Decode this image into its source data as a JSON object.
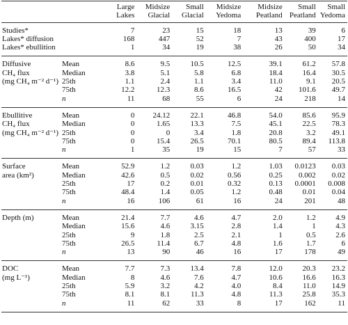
{
  "table": {
    "columns": [
      [
        "Large",
        "Lakes"
      ],
      [
        "Midsize",
        "Glacial"
      ],
      [
        "Small",
        "Glacial"
      ],
      [
        "Midsize",
        "Yedoma"
      ],
      [
        "Midsize",
        "Peatland"
      ],
      [
        "Small",
        "Peatland"
      ],
      [
        "Small",
        "Yedoma"
      ]
    ],
    "counts": [
      {
        "label": "Studies*",
        "values": [
          "7",
          "23",
          "15",
          "18",
          "13",
          "39",
          "6"
        ]
      },
      {
        "label": "Lakes* diffusion",
        "values": [
          "168",
          "447",
          "52",
          "7",
          "43",
          "400",
          "17"
        ]
      },
      {
        "label": "Lakes* ebullition",
        "values": [
          "1",
          "34",
          "19",
          "38",
          "26",
          "50",
          "34"
        ]
      }
    ],
    "sections": [
      {
        "label": [
          "Diffusive",
          "CH₄ flux",
          "(mg CH₄ m⁻² d⁻¹)"
        ],
        "rows": [
          {
            "stat": "Mean",
            "values": [
              "8.6",
              "9.5",
              "10.5",
              "12.5",
              "39.1",
              "61.2",
              "57.8"
            ]
          },
          {
            "stat": "Median",
            "values": [
              "3.8",
              "5.1",
              "5.8",
              "6.8",
              "18.4",
              "16.4",
              "30.5"
            ]
          },
          {
            "stat": "25th",
            "values": [
              "1.1",
              "2.4",
              "1.1",
              "3.4",
              "11.0",
              "9.1",
              "20.5"
            ]
          },
          {
            "stat": "75th",
            "values": [
              "12.2",
              "12.3",
              "8.6",
              "16.5",
              "42",
              "101.6",
              "49.7"
            ]
          },
          {
            "stat": "n",
            "values": [
              "11",
              "68",
              "55",
              "6",
              "24",
              "218",
              "14"
            ]
          }
        ]
      },
      {
        "label": [
          "Ebullitive",
          "CH₄ flux",
          "(mg CH₄ m⁻² d⁻¹)"
        ],
        "rows": [
          {
            "stat": "Mean",
            "values": [
              "0",
              "24.12",
              "22.1",
              "46.8",
              "54.0",
              "85.6",
              "95.9"
            ]
          },
          {
            "stat": "Median",
            "values": [
              "0",
              "1.65",
              "13.3",
              "7.5",
              "45.1",
              "22.5",
              "78.3"
            ]
          },
          {
            "stat": "25th",
            "values": [
              "0",
              "0",
              "3.4",
              "1.8",
              "20.8",
              "3.2",
              "49.1"
            ]
          },
          {
            "stat": "75th",
            "values": [
              "0",
              "15.4",
              "26.5",
              "70.1",
              "80.5",
              "89.4",
              "113.8"
            ]
          },
          {
            "stat": "n",
            "values": [
              "1",
              "35",
              "19",
              "15",
              "7",
              "57",
              "33"
            ]
          }
        ]
      },
      {
        "label": [
          "Surface",
          "area (km²)"
        ],
        "rows": [
          {
            "stat": "Mean",
            "values": [
              "52.9",
              "1.2",
              "0.03",
              "1.2",
              "1.03",
              "0.0123",
              "0.03"
            ]
          },
          {
            "stat": "Median",
            "values": [
              "42.6",
              "0.5",
              "0.02",
              "0.56",
              "0.25",
              "0.002",
              "0.02"
            ]
          },
          {
            "stat": "25th",
            "values": [
              "17",
              "0.2",
              "0.01",
              "0.32",
              "0.13",
              "0.0001",
              "0.008"
            ]
          },
          {
            "stat": "75th",
            "values": [
              "48.4",
              "1.4",
              "0.05",
              "1.2",
              "0.48",
              "0.01",
              "0.04"
            ]
          },
          {
            "stat": "n",
            "values": [
              "16",
              "106",
              "61",
              "16",
              "24",
              "201",
              "48"
            ]
          }
        ]
      },
      {
        "label": [
          "Depth (m)"
        ],
        "rows": [
          {
            "stat": "Mean",
            "values": [
              "21.4",
              "7.7",
              "4.6",
              "4.7",
              "2.0",
              "1.2",
              "4.9"
            ]
          },
          {
            "stat": "Median",
            "values": [
              "15.6",
              "4.6",
              "3.15",
              "2.8",
              "1.4",
              "1",
              "4.3"
            ]
          },
          {
            "stat": "25th",
            "values": [
              "9",
              "1.8",
              "2.5",
              "2.1",
              "1",
              "0.5",
              "2.6"
            ]
          },
          {
            "stat": "75th",
            "values": [
              "26.5",
              "11.4",
              "6.7",
              "4.8",
              "1.6",
              "1.7",
              "6"
            ]
          },
          {
            "stat": "n",
            "values": [
              "13",
              "90",
              "46",
              "16",
              "17",
              "178",
              "49"
            ]
          }
        ]
      },
      {
        "label": [
          "DOC",
          "(mg L⁻¹)"
        ],
        "rows": [
          {
            "stat": "Mean",
            "values": [
              "7.7",
              "7.3",
              "13.4",
              "7.8",
              "12.0",
              "20.3",
              "23.2"
            ]
          },
          {
            "stat": "Median",
            "values": [
              "8",
              "4.6",
              "7.6",
              "4.7",
              "10.6",
              "16.6",
              "16.3"
            ]
          },
          {
            "stat": "25th",
            "values": [
              "5.9",
              "3.2",
              "4.2",
              "4.0",
              "8.4",
              "11.0",
              "14.9"
            ]
          },
          {
            "stat": "75th",
            "values": [
              "8.1",
              "8.1",
              "11.3",
              "4.8",
              "11.3",
              "25.8",
              "35.3"
            ]
          },
          {
            "stat": "n",
            "values": [
              "11",
              "62",
              "33",
              "8",
              "17",
              "162",
              "11"
            ]
          }
        ]
      }
    ]
  }
}
